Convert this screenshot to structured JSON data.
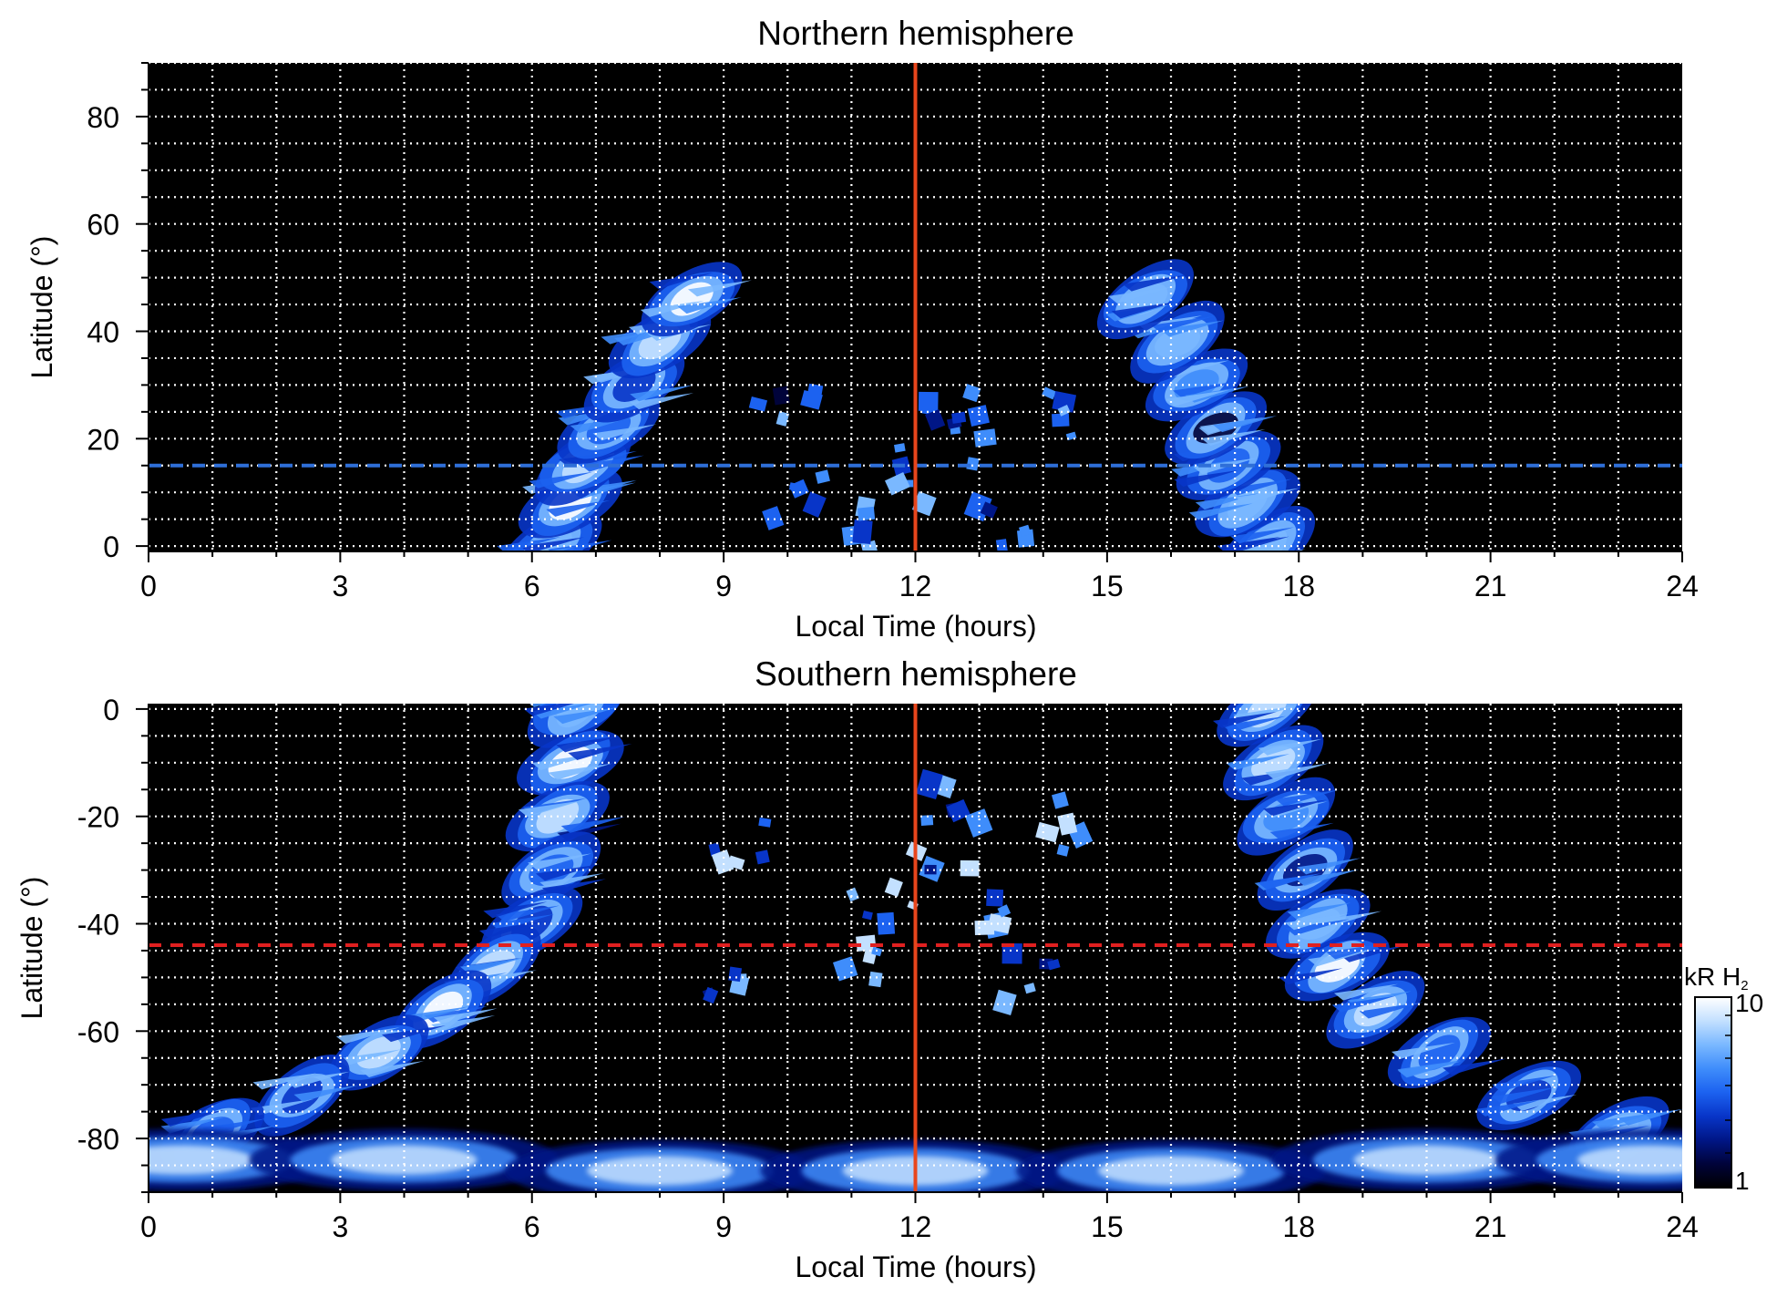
{
  "chart_data": [
    {
      "type": "heatmap",
      "title": "Northern hemisphere",
      "xlabel": "Local Time (hours)",
      "ylabel": "Latitude (°)",
      "xlim": [
        0,
        24
      ],
      "ylim": [
        -1,
        90
      ],
      "x_ticks": [
        "0",
        "3",
        "6",
        "9",
        "12",
        "15",
        "18",
        "21",
        "24"
      ],
      "y_ticks": [
        "0",
        "20",
        "40",
        "60",
        "80"
      ],
      "grid": true,
      "noon_line": {
        "local_time": 12,
        "color": "#e8461c"
      },
      "reference_latitude": {
        "value": 15,
        "color": "#2f6fd8",
        "style": "dashed"
      },
      "emission_features": [
        {
          "label": "dawn band",
          "points": [
            [
              6.3,
              0
            ],
            [
              6.6,
              8
            ],
            [
              6.8,
              15
            ],
            [
              7.2,
              22
            ],
            [
              7.6,
              30
            ],
            [
              8.0,
              38
            ],
            [
              8.5,
              46
            ]
          ],
          "peak_kR": 9.5
        },
        {
          "label": "dusk band",
          "points": [
            [
              17.5,
              0
            ],
            [
              17.2,
              8
            ],
            [
              16.9,
              15
            ],
            [
              16.7,
              22
            ],
            [
              16.4,
              30
            ],
            [
              16.1,
              38
            ],
            [
              15.6,
              46
            ]
          ],
          "peak_kR": 6.5
        },
        {
          "label": "noon patches",
          "points": [
            [
              10.2,
              8
            ],
            [
              11.4,
              4
            ],
            [
              13.4,
              4
            ],
            [
              11.8,
              13
            ],
            [
              13.1,
              20
            ],
            [
              12.6,
              26
            ],
            [
              10.0,
              26
            ],
            [
              14.2,
              24
            ]
          ],
          "peak_kR": 6
        }
      ]
    },
    {
      "type": "heatmap",
      "title": "Southern hemisphere",
      "xlabel": "Local Time (hours)",
      "ylabel": "Latitude (°)",
      "xlim": [
        0,
        24
      ],
      "ylim": [
        -90,
        1
      ],
      "x_ticks": [
        "0",
        "3",
        "6",
        "9",
        "12",
        "15",
        "18",
        "21",
        "24"
      ],
      "y_ticks": [
        "0",
        "-20",
        "-40",
        "-60",
        "-80"
      ],
      "grid": true,
      "noon_line": {
        "local_time": 12,
        "color": "#e8461c"
      },
      "reference_latitude": {
        "value": -44,
        "color": "#e02020",
        "style": "dashed"
      },
      "emission_features": [
        {
          "label": "dawn band",
          "points": [
            [
              6.7,
              0
            ],
            [
              6.6,
              -10
            ],
            [
              6.4,
              -20
            ],
            [
              6.3,
              -30
            ],
            [
              6.0,
              -40
            ],
            [
              5.4,
              -48
            ],
            [
              4.6,
              -56
            ],
            [
              3.6,
              -64
            ],
            [
              2.4,
              -72
            ],
            [
              1.0,
              -79
            ]
          ],
          "peak_kR": 10
        },
        {
          "label": "dusk band",
          "points": [
            [
              17.5,
              0
            ],
            [
              17.6,
              -10
            ],
            [
              17.8,
              -20
            ],
            [
              18.1,
              -30
            ],
            [
              18.3,
              -40
            ],
            [
              18.6,
              -48
            ],
            [
              19.2,
              -56
            ],
            [
              20.2,
              -64
            ],
            [
              21.6,
              -72
            ],
            [
              23.0,
              -79
            ]
          ],
          "peak_kR": 9
        },
        {
          "label": "polar oval",
          "points": [
            [
              0.5,
              -84
            ],
            [
              4,
              -84
            ],
            [
              8,
              -86
            ],
            [
              12,
              -86
            ],
            [
              16,
              -86
            ],
            [
              20,
              -84
            ],
            [
              23.5,
              -84
            ]
          ],
          "peak_kR": 8
        },
        {
          "label": "noon patches",
          "points": [
            [
              12.3,
              -18
            ],
            [
              12.5,
              -26
            ],
            [
              11.5,
              -36
            ],
            [
              13.0,
              -38
            ],
            [
              9.2,
              -25
            ],
            [
              11.0,
              -48
            ],
            [
              13.7,
              -50
            ],
            [
              8.8,
              -53
            ],
            [
              14.1,
              -22
            ]
          ],
          "peak_kR": 8
        }
      ]
    }
  ],
  "colorbar": {
    "label_main": "kR H",
    "label_sub": "2",
    "max_label": "10",
    "min_label": "1",
    "scale": "log",
    "range": [
      1,
      10
    ],
    "colors": [
      "#000000",
      "#00033a",
      "#001686",
      "#0835c8",
      "#1c62f0",
      "#3f8dfb",
      "#7ab8ff",
      "#c3e0ff",
      "#ffffff"
    ]
  }
}
